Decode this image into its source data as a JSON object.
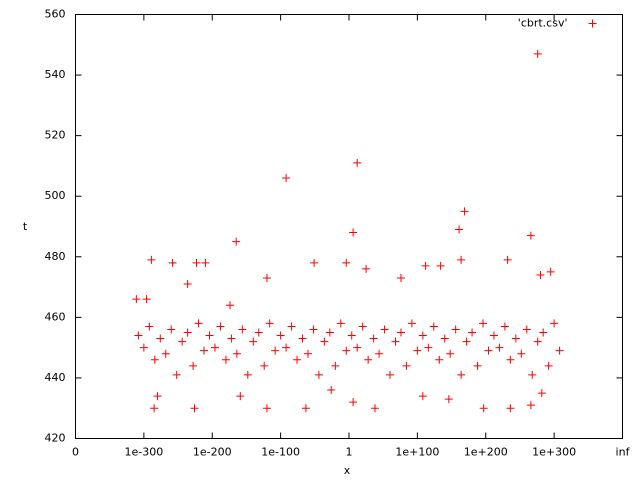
{
  "chart_data": {
    "type": "scatter",
    "x_label": "x",
    "y_label": "t",
    "xlim": [
      -400,
      400
    ],
    "xticks": [
      {
        "value": -400,
        "label": "0"
      },
      {
        "value": -300,
        "label": "1e-300"
      },
      {
        "value": -200,
        "label": "1e-200"
      },
      {
        "value": -100,
        "label": "1e-100"
      },
      {
        "value": 0,
        "label": "1"
      },
      {
        "value": 100,
        "label": "1e+100"
      },
      {
        "value": 200,
        "label": "1e+200"
      },
      {
        "value": 300,
        "label": "1e+300"
      },
      {
        "value": 400,
        "label": "inf"
      }
    ],
    "ylim": [
      420,
      560
    ],
    "yticks": [
      420,
      440,
      460,
      480,
      500,
      520,
      540,
      560
    ],
    "grid": false,
    "legend": "top-right",
    "series": [
      {
        "name": "'cbrt.csv'",
        "color": "#ff0000",
        "x": [
          -308,
          -300,
          -292,
          -284,
          -276,
          -268,
          -260,
          -252,
          -244,
          -236,
          -228,
          -220,
          -212,
          -204,
          -196,
          -188,
          -180,
          -172,
          -164,
          -156,
          -148,
          -140,
          -132,
          -124,
          -116,
          -108,
          -100,
          -92,
          -84,
          -76,
          -68,
          -60,
          -52,
          -44,
          -36,
          -28,
          -20,
          -12,
          -4,
          4,
          12,
          20,
          28,
          36,
          44,
          52,
          60,
          68,
          76,
          84,
          92,
          100,
          108,
          116,
          124,
          132,
          140,
          148,
          156,
          164,
          172,
          180,
          188,
          196,
          204,
          212,
          220,
          228,
          236,
          244,
          252,
          260,
          268,
          276,
          284,
          292,
          300,
          308,
          -311,
          -296,
          -289,
          -285,
          -258,
          -236,
          -226,
          -223,
          -210,
          -165,
          -174,
          -120,
          -92,
          -51,
          -63,
          -4,
          6,
          12,
          6,
          38,
          25,
          164,
          169,
          161,
          112,
          76,
          134,
          232,
          266,
          276,
          280,
          295,
          236,
          197,
          266,
          282,
          146,
          108,
          -26,
          -120,
          -159,
          -280
        ],
        "values": [
          454,
          450,
          457,
          446,
          453,
          448,
          456,
          441,
          452,
          455,
          444,
          458,
          449,
          454,
          450,
          457,
          446,
          453,
          448,
          456,
          441,
          452,
          455,
          444,
          458,
          449,
          454,
          450,
          457,
          446,
          453,
          448,
          456,
          441,
          452,
          455,
          444,
          458,
          449,
          454,
          450,
          457,
          446,
          453,
          448,
          456,
          441,
          452,
          455,
          444,
          458,
          449,
          454,
          450,
          457,
          446,
          453,
          448,
          456,
          441,
          452,
          455,
          444,
          458,
          449,
          454,
          450,
          457,
          446,
          453,
          448,
          456,
          441,
          452,
          455,
          444,
          458,
          449,
          466,
          466,
          479,
          430,
          478,
          471,
          430,
          478,
          478,
          485,
          464,
          473,
          506,
          478,
          430,
          478,
          488,
          511,
          432,
          430,
          476,
          479,
          495,
          489,
          477,
          473,
          477,
          479,
          487,
          547,
          474,
          475,
          430,
          430,
          431,
          435,
          433,
          434,
          436,
          430,
          434,
          434
        ]
      }
    ]
  }
}
